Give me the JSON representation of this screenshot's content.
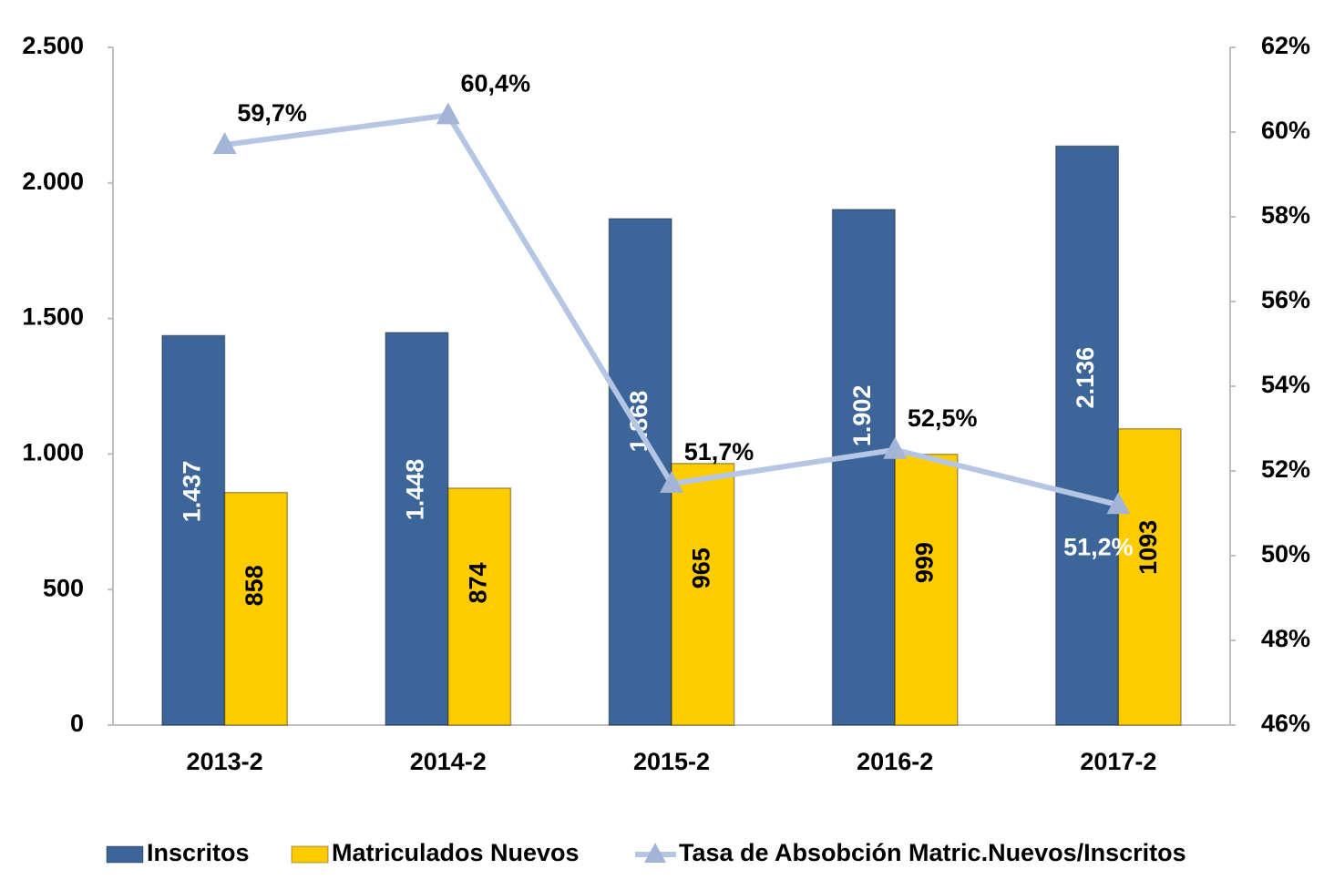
{
  "chart_data": {
    "type": "bar",
    "categories": [
      "2013-2",
      "2014-2",
      "2015-2",
      "2016-2",
      "2017-2"
    ],
    "series": [
      {
        "name": "Inscritos",
        "type": "bar",
        "color": "#3c6699",
        "values": [
          1437,
          1448,
          1868,
          1902,
          2136
        ],
        "value_labels": [
          "1.437",
          "1.448",
          "1.868",
          "1.902",
          "2.136"
        ]
      },
      {
        "name": "Matriculados Nuevos",
        "type": "bar",
        "color": "#ffcc00",
        "values": [
          858,
          874,
          965,
          999,
          1093
        ]
      },
      {
        "name": "Tasa de Absobción Matric.Nuevos/Inscritos",
        "type": "line",
        "axis": "y2",
        "color": "#b4c6e4",
        "marker_color": "#a3b5d6",
        "values": [
          59.7,
          60.4,
          51.7,
          52.5,
          51.2
        ],
        "value_labels": [
          "59,7%",
          "60,4%",
          "51,7%",
          "52,5%",
          "51,2%"
        ]
      }
    ],
    "ylim": [
      0,
      2500
    ],
    "yticks": [
      0,
      500,
      {
        "value": 1000,
        "label": "1.000"
      },
      {
        "value": 1500,
        "label": "1.500"
      },
      {
        "value": 2000,
        "label": "2.000"
      },
      {
        "value": 2500,
        "label": "2.500"
      }
    ],
    "y2lim": [
      46,
      62
    ],
    "y2ticks": [
      {
        "value": 46,
        "label": "46%"
      },
      {
        "value": 48,
        "label": "48%"
      },
      {
        "value": 50,
        "label": "50%"
      },
      {
        "value": 52,
        "label": "52%"
      },
      {
        "value": 54,
        "label": "54%"
      },
      {
        "value": 56,
        "label": "56%"
      },
      {
        "value": 58,
        "label": "58%"
      },
      {
        "value": 60,
        "label": "60%"
      },
      {
        "value": 62,
        "label": "62%"
      }
    ],
    "legend": "bottom"
  }
}
